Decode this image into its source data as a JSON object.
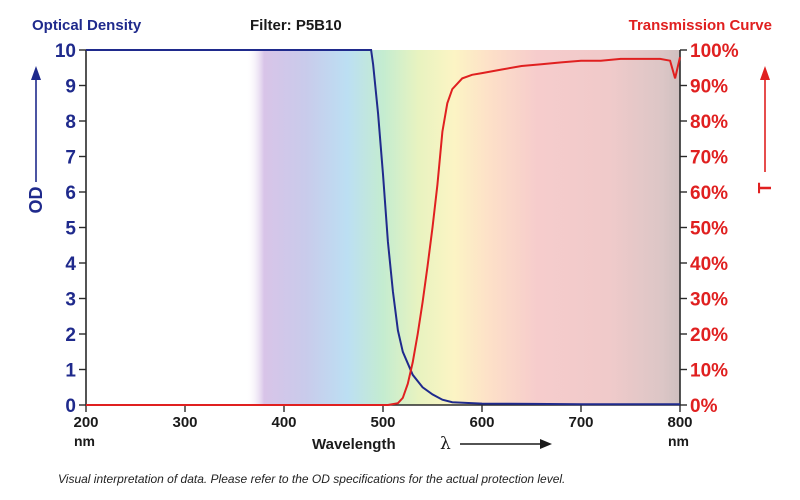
{
  "chart_data": {
    "type": "line",
    "title": "Filter: P5B10",
    "left_axis_title": "Optical Density",
    "left_axis_short": "OD",
    "right_axis_title": "Transmission Curve",
    "right_axis_short": "T",
    "xlabel": "Wavelength",
    "xlabel_symbol": "λ",
    "x_unit": "nm",
    "xlim": [
      200,
      800
    ],
    "ylim_left": [
      0,
      10
    ],
    "ylim_right": [
      0,
      100
    ],
    "x_ticks": [
      "200",
      "300",
      "400",
      "500",
      "600",
      "700",
      "800"
    ],
    "y_left_ticks": [
      "0",
      "1",
      "2",
      "3",
      "4",
      "5",
      "6",
      "7",
      "8",
      "9",
      "10"
    ],
    "y_right_ticks": [
      "0%",
      "10%",
      "20%",
      "30%",
      "40%",
      "50%",
      "60%",
      "70%",
      "80%",
      "90%",
      "100%"
    ],
    "grid": false,
    "series": [
      {
        "color": "#1f2a8c",
        "axis": "left",
        "x": [
          200,
          480,
          488,
          490,
          495,
          500,
          505,
          510,
          515,
          520,
          530,
          540,
          550,
          560,
          570,
          600,
          650,
          700,
          750,
          800
        ],
        "y": [
          10,
          10,
          10,
          9.6,
          8.2,
          6.5,
          4.6,
          3.2,
          2.1,
          1.5,
          0.85,
          0.5,
          0.3,
          0.15,
          0.08,
          0.04,
          0.03,
          0.02,
          0.02,
          0.02
        ]
      },
      {
        "color": "#e02020",
        "axis": "right",
        "x": [
          200,
          505,
          515,
          520,
          525,
          530,
          535,
          540,
          545,
          550,
          555,
          560,
          565,
          570,
          580,
          590,
          600,
          620,
          640,
          660,
          680,
          700,
          720,
          740,
          760,
          780,
          790,
          795,
          800
        ],
        "y": [
          0,
          0,
          0.5,
          2,
          6,
          12,
          20,
          29,
          39,
          50,
          62,
          77,
          85,
          89,
          92,
          93,
          93.5,
          94.5,
          95.5,
          96,
          96.5,
          97,
          97,
          97.5,
          97.5,
          97.5,
          97,
          92,
          98
        ]
      }
    ]
  },
  "footnote": "Visual interpretation of data. Please refer to the OD specifications for the actual protection level.",
  "colors": {
    "od_color": "#1f2a8c",
    "transmission_color": "#e02020",
    "axis_color": "#2a2a2a"
  }
}
